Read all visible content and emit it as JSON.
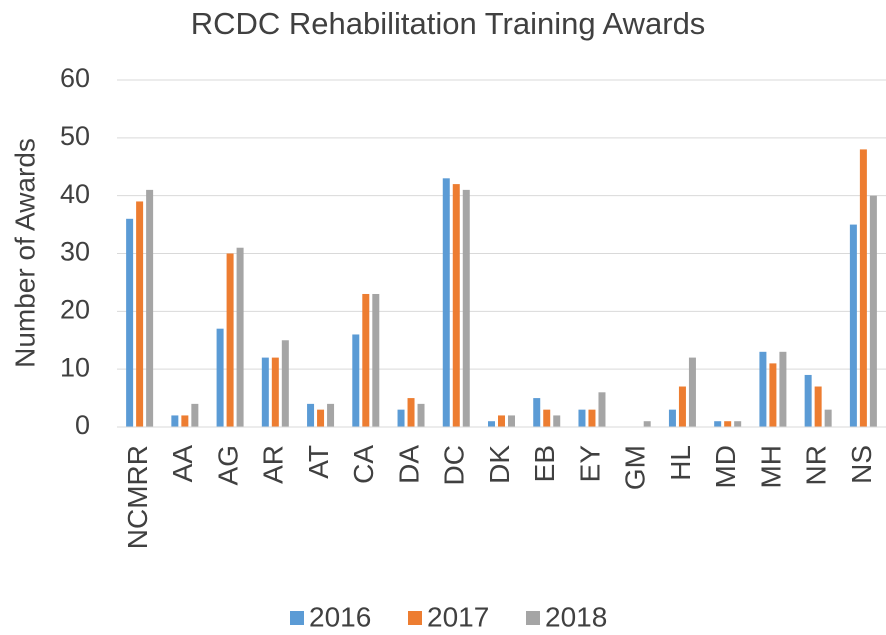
{
  "chart_data": {
    "type": "bar",
    "title": "RCDC Rehabilitation Training Awards",
    "y_label": "Number of Awards",
    "categories": [
      "NCMRR",
      "AA",
      "AG",
      "AR",
      "AT",
      "CA",
      "DA",
      "DC",
      "DK",
      "EB",
      "EY",
      "GM",
      "HL",
      "MD",
      "MH",
      "NR",
      "NS"
    ],
    "series": [
      {
        "name": "2016",
        "color": "#5b9bd5",
        "values": [
          36,
          2,
          17,
          12,
          4,
          16,
          3,
          43,
          1,
          5,
          3,
          0,
          3,
          1,
          13,
          9,
          35
        ]
      },
      {
        "name": "2017",
        "color": "#ed7d31",
        "values": [
          39,
          2,
          30,
          12,
          3,
          23,
          5,
          42,
          2,
          3,
          3,
          0,
          7,
          1,
          11,
          7,
          48
        ]
      },
      {
        "name": "2018",
        "color": "#a5a5a5",
        "values": [
          41,
          4,
          31,
          15,
          4,
          23,
          4,
          41,
          2,
          2,
          6,
          1,
          12,
          1,
          13,
          3,
          40
        ]
      }
    ],
    "ylim": [
      0,
      60
    ],
    "yticks": [
      0,
      10,
      20,
      30,
      40,
      50,
      60
    ],
    "grid": true,
    "legend": "bottom"
  }
}
